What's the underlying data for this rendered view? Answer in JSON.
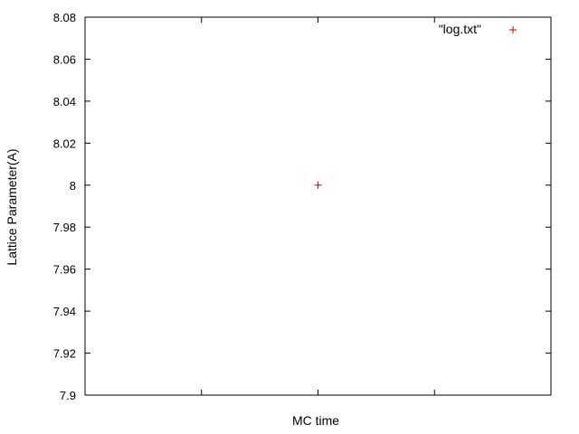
{
  "chart_data": {
    "type": "scatter",
    "title": "",
    "xlabel": "MC time",
    "ylabel": "Lattice Parameter(A)",
    "ylim": [
      7.9,
      8.08
    ],
    "yticks": [
      "7.9",
      "7.92",
      "7.94",
      "7.96",
      "7.98",
      "8",
      "8.02",
      "8.04",
      "8.06",
      "8.08"
    ],
    "xlim": [
      -1,
      1
    ],
    "xtick_count": 5,
    "grid": false,
    "legend_position": "top-right",
    "series": [
      {
        "name": "\"log.txt\"",
        "color": "#cc0000",
        "marker": "plus",
        "points": [
          {
            "x": 0,
            "y": 8.0
          }
        ]
      }
    ]
  }
}
